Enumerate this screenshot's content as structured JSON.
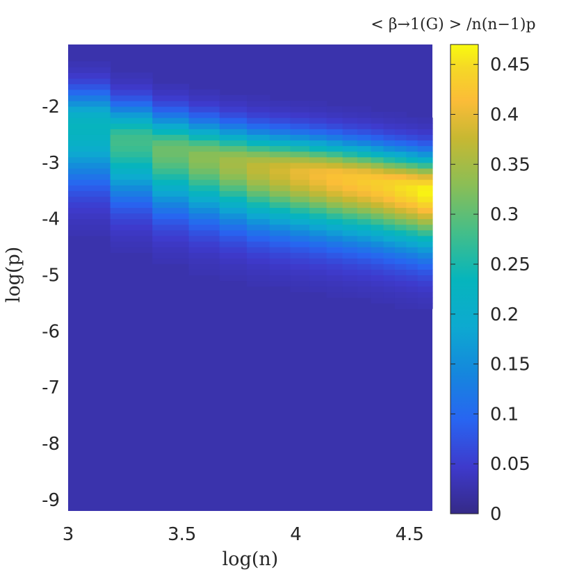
{
  "chart_data": {
    "type": "heatmap",
    "title": "",
    "xlabel": "log(n)",
    "ylabel": "log(p)",
    "colorbar_label": "< β→1(G) > /n(n−1)p",
    "colormap": "parula",
    "xlim": [
      3,
      4.6
    ],
    "ylim": [
      -9.2,
      -0.9
    ],
    "clim": [
      0,
      0.47
    ],
    "x_ticks": [
      3,
      3.5,
      4,
      4.5
    ],
    "x_tick_labels": [
      "3",
      "3.5",
      "4",
      "4.5"
    ],
    "y_ticks": [
      -2,
      -3,
      -4,
      -5,
      -6,
      -7,
      -8,
      -9
    ],
    "y_tick_labels": [
      "-2",
      "-3",
      "-4",
      "-5",
      "-6",
      "-7",
      "-8",
      "-9"
    ],
    "colorbar_ticks": [
      0,
      0.05,
      0.1,
      0.15,
      0.2,
      0.25,
      0.3,
      0.35,
      0.4,
      0.45
    ],
    "colorbar_tick_labels": [
      "0",
      "0.05",
      "0.1",
      "0.15",
      "0.2",
      "0.25",
      "0.3",
      "0.35",
      "0.4",
      "0.45"
    ],
    "x_centers": [
      3.09,
      3.28,
      3.46,
      3.6,
      3.73,
      3.84,
      3.93,
      4.02,
      4.1,
      4.17,
      4.24,
      4.3,
      4.36,
      4.41,
      4.46,
      4.51,
      4.56
    ],
    "ridge": {
      "center": [
        -2.35,
        -2.6,
        -2.78,
        -2.9,
        -3.0,
        -3.08,
        -3.13,
        -3.17,
        -3.21,
        -3.25,
        -3.29,
        -3.32,
        -3.36,
        -3.4,
        -3.43,
        -3.46,
        -3.5
      ],
      "peak": [
        0.23,
        0.28,
        0.31,
        0.33,
        0.35,
        0.37,
        0.385,
        0.4,
        0.41,
        0.42,
        0.425,
        0.43,
        0.435,
        0.44,
        0.45,
        0.455,
        0.465
      ]
    },
    "background_value": 0.025,
    "y_cell_height": 0.1
  }
}
